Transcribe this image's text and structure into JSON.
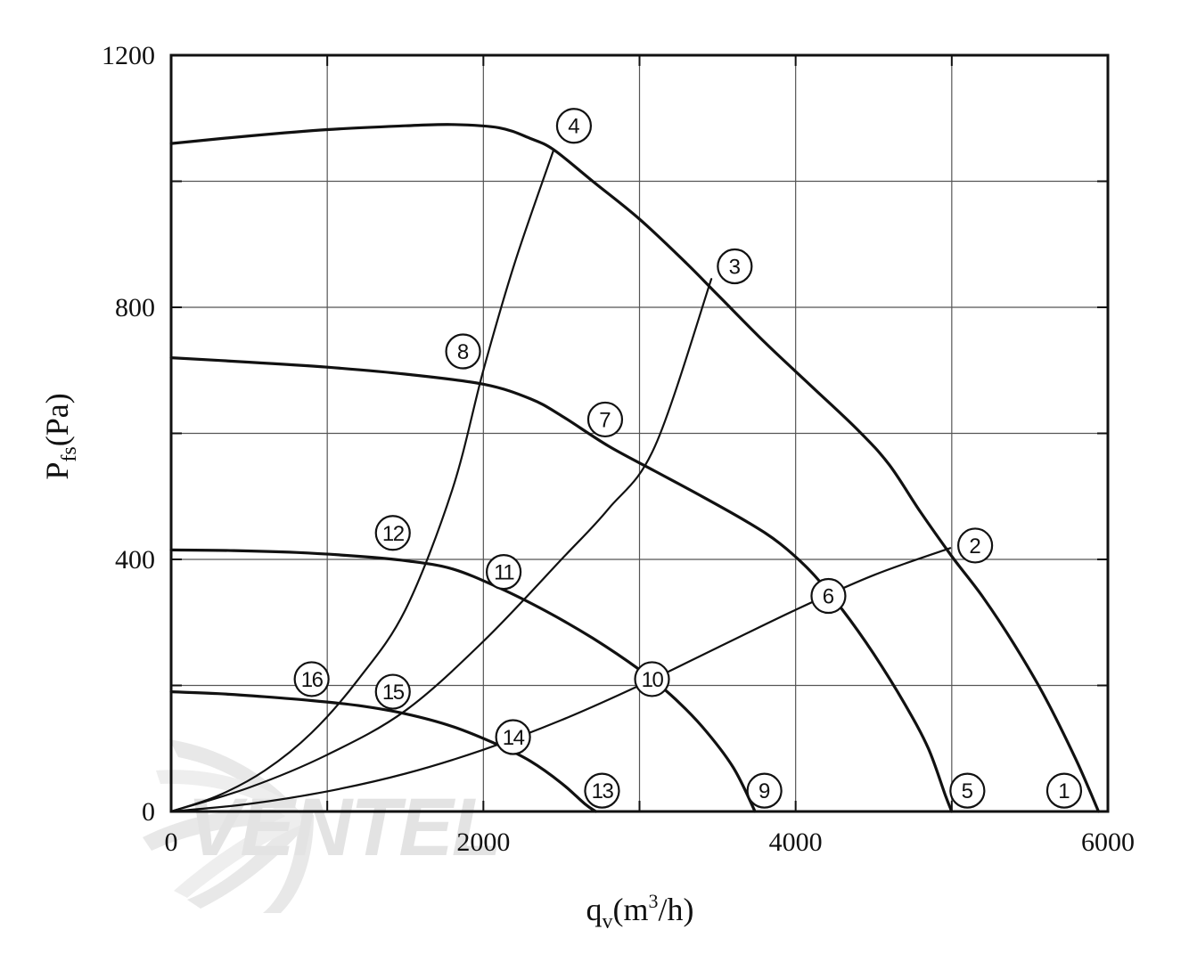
{
  "chart_data": {
    "type": "line",
    "title": "",
    "xlabel": {
      "base": "q",
      "sub": "v",
      "open": "(m",
      "sup": "3",
      "close": "/h)"
    },
    "ylabel": {
      "base": "P",
      "sub": "fs",
      "rest": "(Pa)"
    },
    "xlim": [
      0,
      6000
    ],
    "ylim": [
      0,
      1200
    ],
    "x_ticks": [
      {
        "value": 0,
        "label": "0"
      },
      {
        "value": 2000,
        "label": "2000"
      },
      {
        "value": 4000,
        "label": "4000"
      },
      {
        "value": 6000,
        "label": "6000"
      }
    ],
    "y_ticks": [
      {
        "value": 0,
        "label": "0"
      },
      {
        "value": 400,
        "label": "400"
      },
      {
        "value": 800,
        "label": "800"
      },
      {
        "value": 1200,
        "label": "1200"
      }
    ],
    "grid": true,
    "grid_x": [
      1000,
      2000,
      3000,
      4000,
      5000
    ],
    "grid_y": [
      200,
      400,
      600,
      800,
      1000
    ],
    "watermark": "VENTEL",
    "colors": {
      "line": "#111111",
      "grid": "#555555",
      "watermark_dark": "#e2e2e2",
      "watermark_blue": "#dce8f2"
    },
    "series": [
      {
        "type": "fan-curve",
        "points": [
          [
            0,
            1060
          ],
          [
            500,
            1072
          ],
          [
            1000,
            1082
          ],
          [
            1500,
            1088
          ],
          [
            1800,
            1090
          ],
          [
            2100,
            1085
          ],
          [
            2300,
            1068
          ],
          [
            2450,
            1050
          ],
          [
            2700,
            1000
          ],
          [
            3000,
            940
          ],
          [
            3300,
            870
          ],
          [
            3500,
            820
          ],
          [
            3800,
            745
          ],
          [
            4100,
            675
          ],
          [
            4400,
            605
          ],
          [
            4600,
            550
          ],
          [
            4800,
            475
          ],
          [
            5000,
            405
          ],
          [
            5200,
            340
          ],
          [
            5400,
            265
          ],
          [
            5600,
            180
          ],
          [
            5800,
            80
          ],
          [
            5940,
            0
          ]
        ]
      },
      {
        "type": "fan-curve",
        "points": [
          [
            0,
            720
          ],
          [
            500,
            713
          ],
          [
            1000,
            705
          ],
          [
            1500,
            694
          ],
          [
            2000,
            678
          ],
          [
            2300,
            655
          ],
          [
            2500,
            628
          ],
          [
            2800,
            580
          ],
          [
            3100,
            540
          ],
          [
            3400,
            500
          ],
          [
            3700,
            458
          ],
          [
            3900,
            425
          ],
          [
            4100,
            380
          ],
          [
            4300,
            320
          ],
          [
            4500,
            250
          ],
          [
            4700,
            170
          ],
          [
            4850,
            100
          ],
          [
            4960,
            25
          ],
          [
            5000,
            0
          ]
        ]
      },
      {
        "type": "fan-curve",
        "points": [
          [
            0,
            415
          ],
          [
            400,
            414
          ],
          [
            800,
            411
          ],
          [
            1200,
            405
          ],
          [
            1500,
            398
          ],
          [
            1800,
            385
          ],
          [
            2100,
            355
          ],
          [
            2400,
            318
          ],
          [
            2700,
            275
          ],
          [
            3000,
            225
          ],
          [
            3200,
            185
          ],
          [
            3400,
            135
          ],
          [
            3600,
            70
          ],
          [
            3740,
            0
          ]
        ]
      },
      {
        "type": "fan-curve",
        "points": [
          [
            0,
            190
          ],
          [
            300,
            187
          ],
          [
            600,
            182
          ],
          [
            900,
            176
          ],
          [
            1200,
            168
          ],
          [
            1500,
            155
          ],
          [
            1800,
            135
          ],
          [
            2100,
            105
          ],
          [
            2300,
            80
          ],
          [
            2500,
            45
          ],
          [
            2650,
            12
          ],
          [
            2720,
            0
          ]
        ]
      },
      {
        "type": "system-curve",
        "points": [
          [
            0,
            0
          ],
          [
            500,
            12
          ],
          [
            1000,
            32
          ],
          [
            1500,
            60
          ],
          [
            2000,
            98
          ],
          [
            2500,
            145
          ],
          [
            3000,
            200
          ],
          [
            3500,
            260
          ],
          [
            4000,
            320
          ],
          [
            4500,
            375
          ],
          [
            4990,
            418
          ]
        ]
      },
      {
        "type": "system-curve",
        "points": [
          [
            0,
            0
          ],
          [
            500,
            38
          ],
          [
            1000,
            90
          ],
          [
            1500,
            160
          ],
          [
            2000,
            270
          ],
          [
            2500,
            400
          ],
          [
            2800,
            480
          ],
          [
            3100,
            580
          ],
          [
            3460,
            845
          ]
        ]
      },
      {
        "type": "system-curve",
        "points": [
          [
            0,
            0
          ],
          [
            300,
            25
          ],
          [
            600,
            65
          ],
          [
            900,
            125
          ],
          [
            1200,
            210
          ],
          [
            1500,
            320
          ],
          [
            1800,
            510
          ],
          [
            2000,
            700
          ],
          [
            2200,
            870
          ],
          [
            2450,
            1050
          ]
        ]
      }
    ],
    "markers": [
      {
        "label": "1",
        "x": 5720,
        "y": 33
      },
      {
        "label": "2",
        "x": 5150,
        "y": 422
      },
      {
        "label": "3",
        "x": 3610,
        "y": 865
      },
      {
        "label": "4",
        "x": 2580,
        "y": 1088
      },
      {
        "label": "5",
        "x": 5100,
        "y": 33
      },
      {
        "label": "6",
        "x": 4210,
        "y": 342
      },
      {
        "label": "7",
        "x": 2780,
        "y": 622
      },
      {
        "label": "8",
        "x": 1870,
        "y": 730
      },
      {
        "label": "9",
        "x": 3800,
        "y": 33
      },
      {
        "label": "10",
        "x": 3080,
        "y": 210
      },
      {
        "label": "11",
        "x": 2130,
        "y": 380
      },
      {
        "label": "12",
        "x": 1420,
        "y": 442
      },
      {
        "label": "13",
        "x": 2760,
        "y": 33
      },
      {
        "label": "14",
        "x": 2190,
        "y": 118
      },
      {
        "label": "15",
        "x": 1420,
        "y": 190
      },
      {
        "label": "16",
        "x": 900,
        "y": 210
      }
    ]
  }
}
